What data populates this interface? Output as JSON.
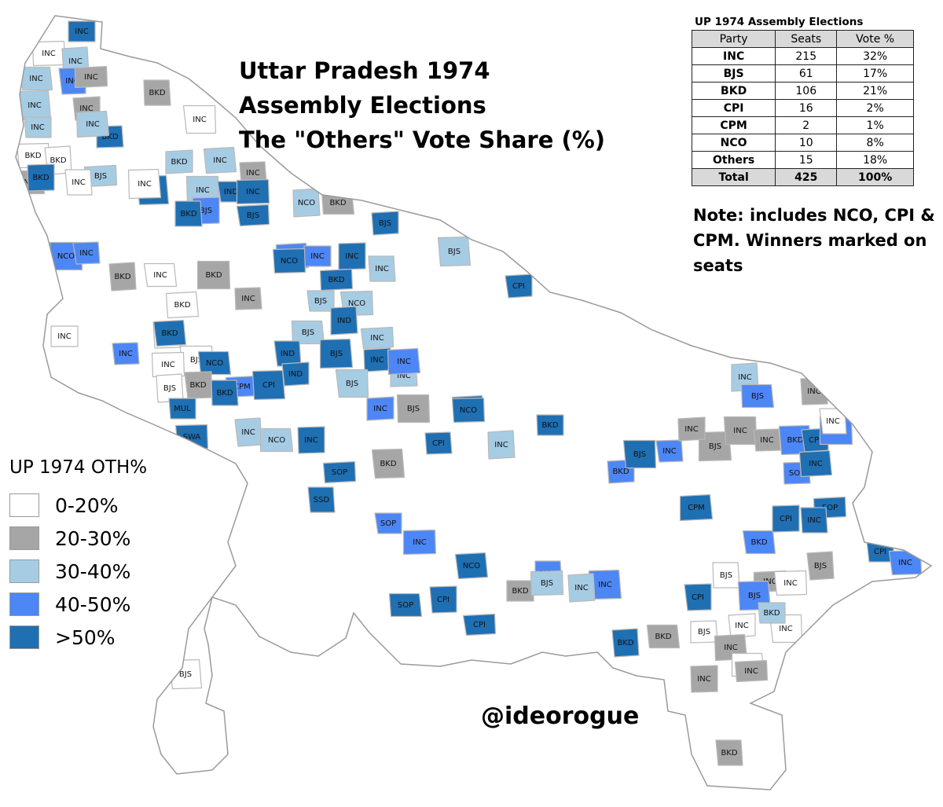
{
  "title_lines": [
    "Uttar Pradesh 1974",
    "Assembly Elections",
    "The \"Others\" Vote Share (%)"
  ],
  "results_table": {
    "caption": "UP 1974 Assembly Elections",
    "headers": [
      "Party",
      "Seats",
      "Vote %"
    ],
    "rows": [
      [
        "INC",
        "215",
        "32%"
      ],
      [
        "BJS",
        "61",
        "17%"
      ],
      [
        "BKD",
        "106",
        "21%"
      ],
      [
        "CPI",
        "16",
        "2%"
      ],
      [
        "CPM",
        "2",
        "1%"
      ],
      [
        "NCO",
        "10",
        "8%"
      ],
      [
        "Others",
        "15",
        "18%"
      ]
    ],
    "total": [
      "Total",
      "425",
      "100%"
    ]
  },
  "note": "Note: includes NCO, CPI & CPM. Winners marked on seats",
  "legend": {
    "title": "UP 1974 OTH%",
    "items": [
      {
        "label": "0-20%",
        "color": "#ffffff"
      },
      {
        "label": "20-30%",
        "color": "#a6a6a6"
      },
      {
        "label": "30-40%",
        "color": "#a6cce4"
      },
      {
        "label": "40-50%",
        "color": "#4d86f5"
      },
      {
        "label": ">50%",
        "color": "#1f6fb3"
      }
    ]
  },
  "credit": "@ideorogue",
  "seats": [
    {
      "party": "INC",
      "cls": 4
    },
    {
      "party": "INC",
      "cls": 0
    },
    {
      "party": "INC",
      "cls": 2
    },
    {
      "party": "INC",
      "cls": 2
    },
    {
      "party": "INC",
      "cls": 3
    },
    {
      "party": "INC",
      "cls": 1
    },
    {
      "party": "BKD",
      "cls": 1
    },
    {
      "party": "INC",
      "cls": 2
    },
    {
      "party": "INC",
      "cls": 1
    },
    {
      "party": "INC",
      "cls": 0
    },
    {
      "party": "BKD",
      "cls": 4
    },
    {
      "party": "INC",
      "cls": 2
    },
    {
      "party": "INC",
      "cls": 2
    },
    {
      "party": "BKD",
      "cls": 0
    },
    {
      "party": "BKD",
      "cls": 0
    },
    {
      "party": "INC",
      "cls": 1
    },
    {
      "party": "BKD",
      "cls": 4
    },
    {
      "party": "BJS",
      "cls": 2
    },
    {
      "party": "INC",
      "cls": 0
    },
    {
      "party": "BKD",
      "cls": 4
    },
    {
      "party": "BKD",
      "cls": 2
    },
    {
      "party": "INC",
      "cls": 2
    },
    {
      "party": "INC",
      "cls": 1
    },
    {
      "party": "INC",
      "cls": 2
    },
    {
      "party": "IND",
      "cls": 4
    },
    {
      "party": "INC",
      "cls": 4
    },
    {
      "party": "NCO",
      "cls": 2
    },
    {
      "party": "BKD",
      "cls": 1
    },
    {
      "party": "BJS",
      "cls": 3
    },
    {
      "party": "BJS",
      "cls": 4
    },
    {
      "party": "BKD",
      "cls": 4
    },
    {
      "party": "INC",
      "cls": 0
    },
    {
      "party": "BJS",
      "cls": 4
    },
    {
      "party": "NCO",
      "cls": 3
    },
    {
      "party": "INC",
      "cls": 3
    },
    {
      "party": "BJS",
      "cls": 3
    },
    {
      "party": "INC",
      "cls": 3
    },
    {
      "party": "NCO",
      "cls": 4
    },
    {
      "party": "BKD",
      "cls": 1
    },
    {
      "party": "INC",
      "cls": 0
    },
    {
      "party": "INC",
      "cls": 4
    },
    {
      "party": "BKD",
      "cls": 4
    },
    {
      "party": "INC",
      "cls": 2
    },
    {
      "party": "BJS",
      "cls": 2
    },
    {
      "party": "CPI",
      "cls": 4
    },
    {
      "party": "BKD",
      "cls": 1
    },
    {
      "party": "INC",
      "cls": 1
    },
    {
      "party": "BKD",
      "cls": 0
    },
    {
      "party": "BJS",
      "cls": 2
    },
    {
      "party": "NCO",
      "cls": 2
    },
    {
      "party": "IND",
      "cls": 4
    },
    {
      "party": "BJS",
      "cls": 2
    },
    {
      "party": "BKD",
      "cls": 0
    },
    {
      "party": "INC",
      "cls": 2
    },
    {
      "party": "IND",
      "cls": 4
    },
    {
      "party": "BJS",
      "cls": 4
    },
    {
      "party": "INC",
      "cls": 4
    },
    {
      "party": "BJS",
      "cls": 0
    },
    {
      "party": "INC",
      "cls": 3
    },
    {
      "party": "BKD",
      "cls": 4
    },
    {
      "party": "INC",
      "cls": 0
    },
    {
      "party": "INC",
      "cls": 0
    },
    {
      "party": "BJS",
      "cls": 0
    },
    {
      "party": "NCO",
      "cls": 4
    },
    {
      "party": "BKD",
      "cls": 1
    },
    {
      "party": "CPM",
      "cls": 3
    },
    {
      "party": "BKD",
      "cls": 4
    },
    {
      "party": "CPI",
      "cls": 4
    },
    {
      "party": "IND",
      "cls": 4
    },
    {
      "party": "BJS",
      "cls": 2
    },
    {
      "party": "INC",
      "cls": 2
    },
    {
      "party": "INC",
      "cls": 3
    },
    {
      "party": "MUL",
      "cls": 4
    },
    {
      "party": "SWA",
      "cls": 4
    },
    {
      "party": "INC",
      "cls": 2
    },
    {
      "party": "NCO",
      "cls": 2
    },
    {
      "party": "INC",
      "cls": 4
    },
    {
      "party": "SOP",
      "cls": 4
    },
    {
      "party": "SSD",
      "cls": 4
    },
    {
      "party": "BKD",
      "cls": 1
    },
    {
      "party": "INC",
      "cls": 3
    },
    {
      "party": "BJS",
      "cls": 1
    },
    {
      "party": "CPI",
      "cls": 4
    },
    {
      "party": "INC",
      "cls": 4
    },
    {
      "party": "SOP",
      "cls": 3
    },
    {
      "party": "INC",
      "cls": 3
    },
    {
      "party": "INC",
      "cls": 2
    },
    {
      "party": "SOP",
      "cls": 4
    },
    {
      "party": "CPI",
      "cls": 4
    },
    {
      "party": "CPI",
      "cls": 4
    },
    {
      "party": "NCO",
      "cls": 3
    },
    {
      "party": "INC",
      "cls": 3
    },
    {
      "party": "BKD",
      "cls": 3
    },
    {
      "party": "BJS",
      "cls": 4
    },
    {
      "party": "INC",
      "cls": 3
    },
    {
      "party": "CPM",
      "cls": 4
    },
    {
      "party": "BKD",
      "cls": 4
    },
    {
      "party": "NCO",
      "cls": 4
    },
    {
      "party": "BKD",
      "cls": 4
    },
    {
      "party": "BKD",
      "cls": 3
    },
    {
      "party": "CPI",
      "cls": 4
    },
    {
      "party": "SOP",
      "cls": 4
    },
    {
      "party": "INC",
      "cls": 4
    },
    {
      "party": "BKD",
      "cls": 3
    },
    {
      "party": "CPI",
      "cls": 4
    },
    {
      "party": "INC",
      "cls": 3
    },
    {
      "party": "SOP",
      "cls": 3
    },
    {
      "party": "INC",
      "cls": 4
    },
    {
      "party": "CPI",
      "cls": 4
    },
    {
      "party": "INC",
      "cls": 3
    },
    {
      "party": "INC",
      "cls": 2
    },
    {
      "party": "BJS",
      "cls": 3
    },
    {
      "party": "INC",
      "cls": 1
    },
    {
      "party": "BJS",
      "cls": 0
    },
    {
      "party": "INC",
      "cls": 0
    },
    {
      "party": "BJS",
      "cls": 1
    },
    {
      "party": "INC",
      "cls": 1
    },
    {
      "party": "INC",
      "cls": 1
    },
    {
      "party": "INC",
      "cls": 1
    },
    {
      "party": "NCO",
      "cls": 4
    },
    {
      "party": "BKD",
      "cls": 1
    },
    {
      "party": "BJS",
      "cls": 2
    },
    {
      "party": "INC",
      "cls": 2
    },
    {
      "party": "BKD",
      "cls": 1
    },
    {
      "party": "CPI",
      "cls": 4
    },
    {
      "party": "INC",
      "cls": 1
    },
    {
      "party": "BJS",
      "cls": 0
    },
    {
      "party": "BJS",
      "cls": 3
    },
    {
      "party": "INC",
      "cls": 0
    },
    {
      "party": "INC",
      "cls": 0
    },
    {
      "party": "BJS",
      "cls": 0
    },
    {
      "party": "INC",
      "cls": 1
    },
    {
      "party": "BKD",
      "cls": 2
    },
    {
      "party": "INC",
      "cls": 0
    },
    {
      "party": "BJS",
      "cls": 1
    },
    {
      "party": "INC",
      "cls": 0
    },
    {
      "party": "INC",
      "cls": 1
    },
    {
      "party": "INC",
      "cls": 1
    },
    {
      "party": "BKD",
      "cls": 1
    },
    {
      "party": "BJS",
      "cls": 0
    }
  ]
}
